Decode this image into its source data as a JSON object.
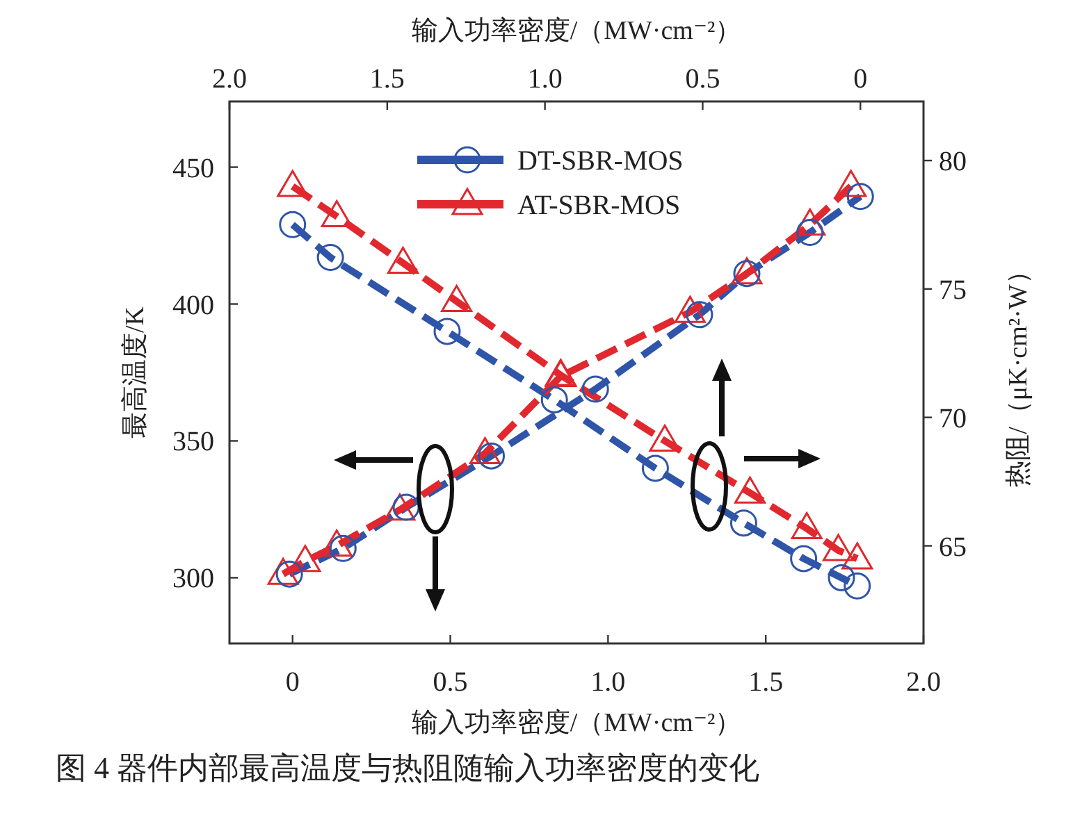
{
  "chart_data": {
    "type": "line",
    "xlabel": "输入功率密度/（MW·cm⁻²）",
    "x2label": "输入功率密度/（MW·cm⁻²）",
    "ylabel": "最高温度/K",
    "y2label": "热阻/（μK·cm²·W）",
    "xlim": [
      2.0,
      -0.2
    ],
    "xticks": [
      0,
      0.5,
      {
        "value": 1,
        "label": "1.0"
      },
      1.5,
      {
        "value": 2,
        "label": "2.0"
      }
    ],
    "x2lim": [
      -0.2,
      2.0
    ],
    "x2ticks": [
      0,
      0.5,
      {
        "value": 1,
        "label": "1.0"
      },
      1.5,
      {
        "value": 2,
        "label": "2.0"
      }
    ],
    "ylim": [
      276,
      474
    ],
    "yticks": [
      300,
      350,
      400,
      450
    ],
    "y2lim": [
      61.2,
      82.3
    ],
    "y2ticks": [
      65,
      70,
      75,
      80
    ],
    "legend": "top",
    "line_style": "dashed",
    "series": [
      {
        "name": "DT-SBR-MOS",
        "color": "#2f55a8",
        "marker": "circle",
        "axis": "x2",
        "x": [
          0,
          0.12,
          0.49,
          0.83,
          1.15,
          1.43,
          1.62,
          1.74,
          1.79
        ],
        "values": [
          429,
          417,
          390,
          365,
          340,
          320,
          307,
          300,
          297
        ]
      },
      {
        "name": "AT-SBR-MOS",
        "color": "#e0282e",
        "marker": "triangle",
        "axis": "x2",
        "x": [
          0,
          0.14,
          0.35,
          0.52,
          0.85,
          1.18,
          1.45,
          1.63,
          1.73,
          1.79
        ],
        "values": [
          443,
          432,
          415,
          401,
          374,
          350,
          331,
          318,
          310,
          307
        ]
      },
      {
        "color": "#2f55a8",
        "marker": "circle",
        "axis": "y2",
        "x": [
          1.81,
          1.64,
          1.44,
          1.17,
          0.84,
          0.51,
          0.36,
          0.16,
          0.0
        ],
        "values": [
          63.9,
          64.9,
          66.5,
          68.5,
          71.1,
          74.0,
          75.6,
          77.2,
          78.6
        ]
      },
      {
        "color": "#e0282e",
        "marker": "triangle",
        "axis": "y2",
        "x": [
          1.83,
          1.76,
          1.66,
          1.46,
          1.19,
          0.95,
          0.54,
          0.36,
          0.16,
          0.03
        ],
        "values": [
          63.9,
          64.4,
          65.0,
          66.4,
          68.6,
          71.6,
          74.1,
          75.6,
          77.5,
          79.0
        ]
      }
    ],
    "annotations": [
      "图 4   器件内部最高温度与热阻随输入功率密度的变化"
    ]
  }
}
